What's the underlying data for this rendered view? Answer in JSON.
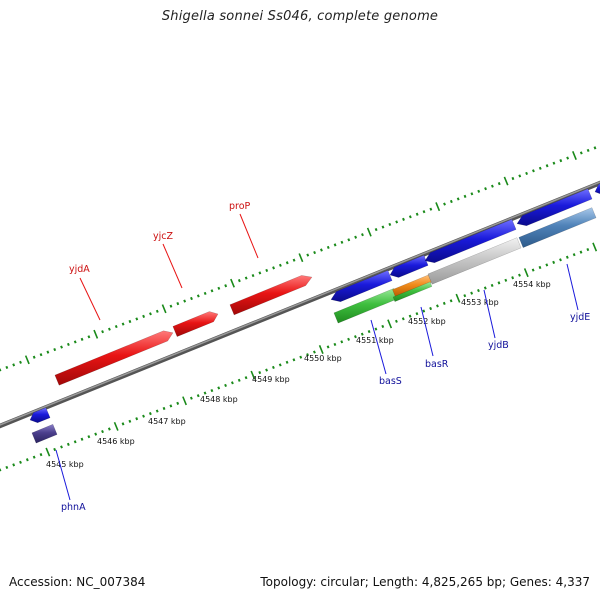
{
  "header": {
    "title": "Shigella sonnei Ss046, complete genome"
  },
  "footer": {
    "accession": "Accession: NC_007384",
    "topology": "Topology: circular; Length: 4,825,265 bp; Genes: 4,337"
  },
  "colors": {
    "forward_gene": "#e81414",
    "reverse_gene": "#1a1adb",
    "dark_gene": "#4b3f8c",
    "green_gene": "#3fbf3f",
    "orange_gene": "#f08a1a",
    "gray_gene": "#c8c8c8",
    "steel_gene": "#4f82b8",
    "backbone": "#7a7a7a",
    "tick": "#1a8a1a",
    "forward_label": "#cc1010",
    "reverse_label": "#10109a"
  },
  "scale": {
    "ticks": [
      "4545 kbp",
      "4546 kbp",
      "4547 kbp",
      "4548 kbp",
      "4549 kbp",
      "4550 kbp",
      "4551 kbp",
      "4552 kbp",
      "4553 kbp",
      "4554 kbp"
    ]
  },
  "genes": {
    "forward": [
      {
        "name": "yjdA",
        "color": "forward_gene"
      },
      {
        "name": "yjcZ",
        "color": "forward_gene"
      },
      {
        "name": "proP",
        "color": "forward_gene"
      }
    ],
    "reverse": [
      {
        "name": "phnA",
        "color": "dark_gene"
      },
      {
        "name": "basS",
        "color": "green_gene"
      },
      {
        "name": "basR",
        "color": "orange_gene"
      },
      {
        "name": "yjdB",
        "color": "gray_gene"
      },
      {
        "name": "yjdE",
        "color": "steel_gene"
      }
    ]
  }
}
